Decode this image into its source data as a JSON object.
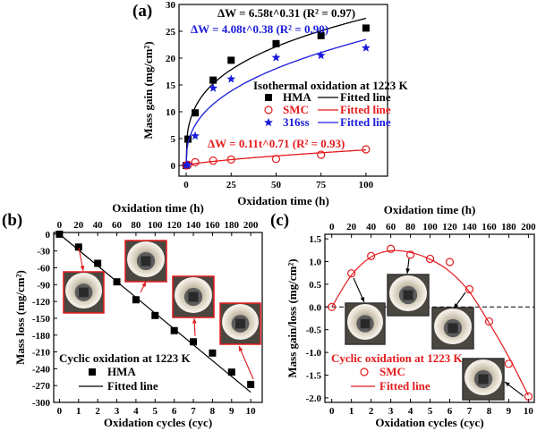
{
  "colors": {
    "hma": "#000000",
    "smc": "#e41a1c",
    "ss316": "#1a1adc",
    "photo_frame_b": "#e41a1c",
    "photo_frame_c": "#333333"
  },
  "chart_data": [
    {
      "panel": "(a)",
      "type": "scatter",
      "xlabel": "Oxidation time (h)",
      "ylabel": "Mass gain (mg/cm²)",
      "xlim": [
        -4,
        112
      ],
      "ylim": [
        -2,
        30
      ],
      "xticks": [
        0,
        25,
        50,
        75,
        100
      ],
      "yticks": [
        0,
        5,
        10,
        15,
        20,
        25,
        30
      ],
      "legend_title": "Isothermal oxidation at 1223 K",
      "legend_placement": "center-right",
      "fit_label": "Fitted line",
      "series": [
        {
          "name": "HMA",
          "marker": "square",
          "x": [
            0,
            1,
            5,
            15,
            25,
            50,
            75,
            100
          ],
          "values": [
            0,
            4.9,
            9.8,
            15.9,
            19.6,
            22.7,
            24.2,
            25.6
          ],
          "fit": {
            "a": 6.58,
            "b": 0.31
          },
          "equation": "ΔW = 6.58t^0.31 (R² = 0.97)"
        },
        {
          "name": "SMC",
          "marker": "circle-open",
          "x": [
            0,
            1,
            5,
            15,
            25,
            50,
            75,
            100
          ],
          "values": [
            0,
            0.1,
            0.6,
            0.9,
            1.1,
            1.2,
            2.0,
            3.0
          ],
          "fit": {
            "a": 0.11,
            "b": 0.71
          },
          "equation": "ΔW = 0.11t^0.71 (R² = 0.93)"
        },
        {
          "name": "316ss",
          "marker": "star",
          "x": [
            0,
            1,
            5,
            15,
            25,
            50,
            75,
            100
          ],
          "values": [
            0,
            0.1,
            5.5,
            14.4,
            16.1,
            20.1,
            20.5,
            21.9
          ],
          "fit": {
            "a": 4.08,
            "b": 0.38
          },
          "equation": "ΔW = 4.08t^0.38 (R² = 0.90)"
        }
      ]
    },
    {
      "panel": "(b)",
      "type": "scatter",
      "xlabel": "Oxidation cycles (cyc)",
      "x2label": "Oxidation time (h)",
      "ylabel": "Mass loss (mg/cm²)",
      "xlim": [
        -0.3,
        10.6
      ],
      "ylim": [
        -300,
        3
      ],
      "xticks": [
        0,
        1,
        2,
        3,
        4,
        5,
        6,
        7,
        8,
        9,
        10
      ],
      "x2ticks": [
        0,
        20,
        40,
        60,
        80,
        100,
        120,
        140,
        160,
        180,
        200
      ],
      "yticks": [
        0,
        -30,
        -60,
        -90,
        -120,
        -150,
        -180,
        -210,
        -240,
        -270,
        -300
      ],
      "legend_title": "Cyclic oxidation at 1223 K",
      "legend_placement": "bottom-left",
      "series": [
        {
          "name": "HMA",
          "marker": "square",
          "x": [
            0,
            1,
            2,
            3,
            4,
            5,
            6,
            7,
            8,
            9,
            10
          ],
          "values": [
            0,
            -23,
            -52,
            -85,
            -117,
            -145,
            -172,
            -192,
            -212,
            -246,
            -268
          ]
        },
        {
          "name": "Fitted line",
          "type": "line",
          "x": [
            0,
            10
          ],
          "values": [
            0,
            -282
          ]
        }
      ]
    },
    {
      "panel": "(c)",
      "type": "scatter",
      "xlabel": "Oxidation cycles (cyc)",
      "x2label": "Oxidation time (h)",
      "ylabel": "Mass gain/loss (mg/cm²)",
      "xlim": [
        -0.35,
        10.3
      ],
      "ylim": [
        -2.1,
        1.6
      ],
      "xticks": [
        0,
        1,
        2,
        3,
        4,
        5,
        6,
        7,
        8,
        9,
        10
      ],
      "x2ticks": [
        0,
        20,
        40,
        60,
        80,
        100,
        120,
        140,
        160,
        180,
        200
      ],
      "yticks": [
        "1.5",
        "1.0",
        "0.5",
        "0.0",
        "-0.5",
        "-1.0",
        "-1.5",
        "-2.0"
      ],
      "legend_title": "Cyclic oxidation at 1223 K",
      "legend_placement": "bottom-left",
      "series": [
        {
          "name": "SMC",
          "marker": "circle-open",
          "x": [
            0,
            1,
            2,
            3,
            4,
            5,
            6,
            7,
            8,
            9,
            10
          ],
          "values": [
            0,
            0.74,
            1.12,
            1.28,
            1.15,
            1.06,
            0.99,
            0.39,
            -0.32,
            -1.25,
            -1.97
          ]
        },
        {
          "name": "Fitted line",
          "type": "line",
          "x": [
            0,
            1,
            2,
            3,
            4,
            5,
            6,
            7,
            8,
            9,
            10
          ],
          "values": [
            0,
            0.7,
            1.1,
            1.24,
            1.2,
            1.05,
            0.78,
            0.33,
            -0.35,
            -1.1,
            -1.95
          ]
        }
      ]
    }
  ]
}
